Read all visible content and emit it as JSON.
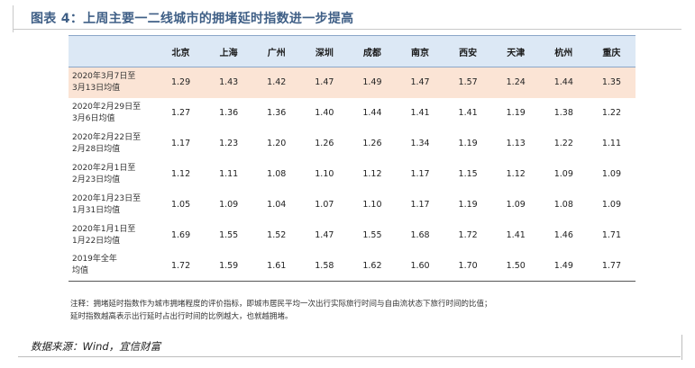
{
  "title": "图表 4：上周主要一二线城市的拥堵延时指数进一步提高",
  "columns": [
    "北京",
    "上海",
    "广州",
    "深圳",
    "成都",
    "南京",
    "西安",
    "天津",
    "杭州",
    "重庆"
  ],
  "rows": [
    {
      "label_line1": "2020年3月7日至",
      "label_line2": "3月13日均值",
      "values": [
        "1.29",
        "1.43",
        "1.42",
        "1.47",
        "1.49",
        "1.47",
        "1.57",
        "1.24",
        "1.44",
        "1.35"
      ]
    },
    {
      "label_line1": "2020年2月29日至",
      "label_line2": "3月6日均值",
      "values": [
        "1.27",
        "1.36",
        "1.36",
        "1.40",
        "1.44",
        "1.41",
        "1.41",
        "1.19",
        "1.38",
        "1.22"
      ]
    },
    {
      "label_line1": "2020年2月22日至",
      "label_line2": "2月28日均值",
      "values": [
        "1.17",
        "1.23",
        "1.20",
        "1.26",
        "1.26",
        "1.34",
        "1.19",
        "1.13",
        "1.22",
        "1.11"
      ]
    },
    {
      "label_line1": "2020年2月1日至",
      "label_line2": "2月23日均值",
      "values": [
        "1.12",
        "1.11",
        "1.08",
        "1.10",
        "1.12",
        "1.17",
        "1.15",
        "1.12",
        "1.09",
        "1.09"
      ]
    },
    {
      "label_line1": "2020年1月23日至",
      "label_line2": "1月31日均值",
      "values": [
        "1.05",
        "1.09",
        "1.04",
        "1.07",
        "1.10",
        "1.17",
        "1.19",
        "1.09",
        "1.08",
        "1.09"
      ]
    },
    {
      "label_line1": "2020年1月1日至",
      "label_line2": "1月22日均值",
      "values": [
        "1.69",
        "1.55",
        "1.52",
        "1.47",
        "1.55",
        "1.68",
        "1.72",
        "1.41",
        "1.46",
        "1.71"
      ]
    },
    {
      "label_line1": "2019年全年",
      "label_line2": "均值",
      "values": [
        "1.72",
        "1.59",
        "1.61",
        "1.58",
        "1.62",
        "1.60",
        "1.70",
        "1.50",
        "1.49",
        "1.77"
      ]
    }
  ],
  "notes": [
    "注释：拥堵延时指数作为城市拥堵程度的评价指标，即城市居民平均一次出行实际旅行时间与自由流状态下旅行时间的比值；",
    "延时指数越高表示出行延时占出行时间的比例越大，也就越拥堵。"
  ],
  "source": "数据来源：Wind，宜信财富",
  "colors": {
    "title": "#3f5f86",
    "header_bg": "#dce8f5",
    "highlight_row_bg": "#fbe4d5"
  }
}
